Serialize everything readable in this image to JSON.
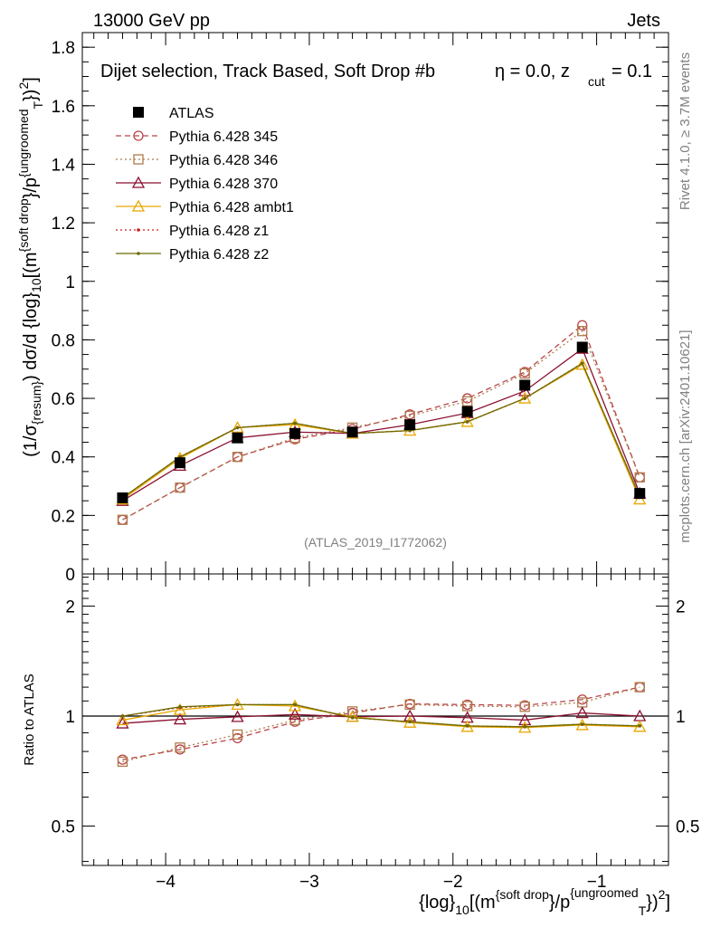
{
  "header": {
    "energy_label": "13000 GeV pp",
    "category_label": "Jets",
    "plot_title": "Dijet selection, Track Based, Soft Drop #b",
    "beta_text": "η = 0.0, z",
    "zcut_sub": "cut",
    "zcut_value": " = 0.1",
    "watermark": "(ATLAS_2019_I1772062)",
    "side_rivet": "Rivet 4.1.0, ≥ 3.7M events",
    "side_mcplots": "mcplots.cern.ch [arXiv:2401.10621]"
  },
  "colors": {
    "atlas": "#000000",
    "p345": "#b8434a",
    "p346": "#b07a4a",
    "p370": "#8b1030",
    "ambt1": "#e8a600",
    "z1": "#cc2020",
    "z2": "#6b6b00"
  },
  "chart_data": [
    {
      "type": "line",
      "panel": "main",
      "ylabel": "(1/σ_{resum}) dσ/d {log}_{10}[(m^{soft drop}/p_T^{ungroomed})^2]",
      "ylim": [
        0,
        1.85
      ],
      "xlim": [
        -4.58,
        -0.5
      ],
      "y_ticks": [
        "0",
        "0.2",
        "0.4",
        "0.6",
        "0.8",
        "1",
        "1.2",
        "1.4",
        "1.6",
        "1.8"
      ],
      "x": [
        -4.3,
        -3.9,
        -3.5,
        -3.1,
        -2.7,
        -2.3,
        -1.9,
        -1.5,
        -1.1,
        -0.7
      ],
      "series": [
        {
          "name": "ATLAS",
          "style": "data",
          "values": [
            0.26,
            0.38,
            0.465,
            0.48,
            0.485,
            0.51,
            0.555,
            0.645,
            0.775,
            0.275
          ]
        },
        {
          "name": "Pythia 6.428 345",
          "style": "circle-dashed",
          "values": [
            0.185,
            0.295,
            0.4,
            0.46,
            0.495,
            0.545,
            0.6,
            0.69,
            0.85,
            0.33
          ]
        },
        {
          "name": "Pythia 6.428 346",
          "style": "square-dotted",
          "values": [
            0.185,
            0.295,
            0.4,
            0.465,
            0.5,
            0.54,
            0.59,
            0.685,
            0.83,
            0.33
          ]
        },
        {
          "name": "Pythia 6.428 370",
          "style": "triangle-solid",
          "values": [
            0.25,
            0.37,
            0.465,
            0.485,
            0.48,
            0.51,
            0.55,
            0.625,
            0.77,
            0.275
          ]
        },
        {
          "name": "Pythia 6.428 ambt1",
          "style": "triangle-solid",
          "values": [
            0.255,
            0.395,
            0.5,
            0.51,
            0.48,
            0.49,
            0.52,
            0.6,
            0.715,
            0.255
          ]
        },
        {
          "name": "Pythia 6.428 z1",
          "style": "dot-dotted",
          "values": [
            0.26,
            0.4,
            0.5,
            0.515,
            0.48,
            0.49,
            0.52,
            0.6,
            0.72,
            0.265
          ]
        },
        {
          "name": "Pythia 6.428 z2",
          "style": "dot-solid",
          "values": [
            0.26,
            0.4,
            0.5,
            0.515,
            0.48,
            0.49,
            0.52,
            0.6,
            0.72,
            0.265
          ]
        }
      ]
    },
    {
      "type": "line",
      "panel": "ratio",
      "ylabel": "Ratio to ATLAS",
      "ylim": [
        0.39,
        2.45
      ],
      "yscale": "log",
      "xlabel": "{log}_{10}[(m^{soft drop}/p_T^{ungroomed})^2]",
      "y_ticks": [
        "0.5",
        "1",
        "2"
      ],
      "x_ticks": [
        "−4",
        "−3",
        "−2",
        "−1"
      ],
      "x_tick_values": [
        -4,
        -3,
        -2,
        -1
      ],
      "x": [
        -4.3,
        -3.9,
        -3.5,
        -3.1,
        -2.7,
        -2.3,
        -1.9,
        -1.5,
        -1.1,
        -0.7
      ],
      "series": [
        {
          "name": "Pythia 6.428 345",
          "style": "circle-dashed",
          "values": [
            0.76,
            0.81,
            0.87,
            0.965,
            1.02,
            1.08,
            1.075,
            1.07,
            1.11,
            1.2
          ]
        },
        {
          "name": "Pythia 6.428 346",
          "style": "square-dotted",
          "values": [
            0.75,
            0.82,
            0.89,
            0.975,
            1.03,
            1.075,
            1.065,
            1.06,
            1.09,
            1.2
          ]
        },
        {
          "name": "Pythia 6.428 370",
          "style": "triangle-solid",
          "values": [
            0.955,
            0.98,
            0.995,
            1.01,
            0.995,
            1.0,
            0.99,
            0.975,
            1.02,
            1.0
          ]
        },
        {
          "name": "Pythia 6.428 ambt1",
          "style": "triangle-solid",
          "values": [
            0.975,
            1.04,
            1.075,
            1.065,
            0.995,
            0.96,
            0.935,
            0.93,
            0.945,
            0.935
          ]
        },
        {
          "name": "Pythia 6.428 z1",
          "style": "dot-dotted",
          "values": [
            1.0,
            1.055,
            1.075,
            1.075,
            0.99,
            0.965,
            0.94,
            0.935,
            0.95,
            0.94
          ]
        },
        {
          "name": "Pythia 6.428 z2",
          "style": "dot-solid",
          "values": [
            1.0,
            1.06,
            1.075,
            1.075,
            0.99,
            0.965,
            0.94,
            0.935,
            0.95,
            0.94
          ]
        }
      ]
    }
  ],
  "legend": [
    {
      "label": "ATLAS",
      "style": "data",
      "color_key": "atlas"
    },
    {
      "label": "Pythia 6.428 345",
      "style": "circle-dashed",
      "color_key": "p345"
    },
    {
      "label": "Pythia 6.428 346",
      "style": "square-dotted",
      "color_key": "p346"
    },
    {
      "label": "Pythia 6.428 370",
      "style": "triangle-solid",
      "color_key": "p370"
    },
    {
      "label": "Pythia 6.428 ambt1",
      "style": "triangle-solid",
      "color_key": "ambt1"
    },
    {
      "label": "Pythia 6.428 z1",
      "style": "dot-dotted",
      "color_key": "z1"
    },
    {
      "label": "Pythia 6.428 z2",
      "style": "dot-solid",
      "color_key": "z2"
    }
  ]
}
